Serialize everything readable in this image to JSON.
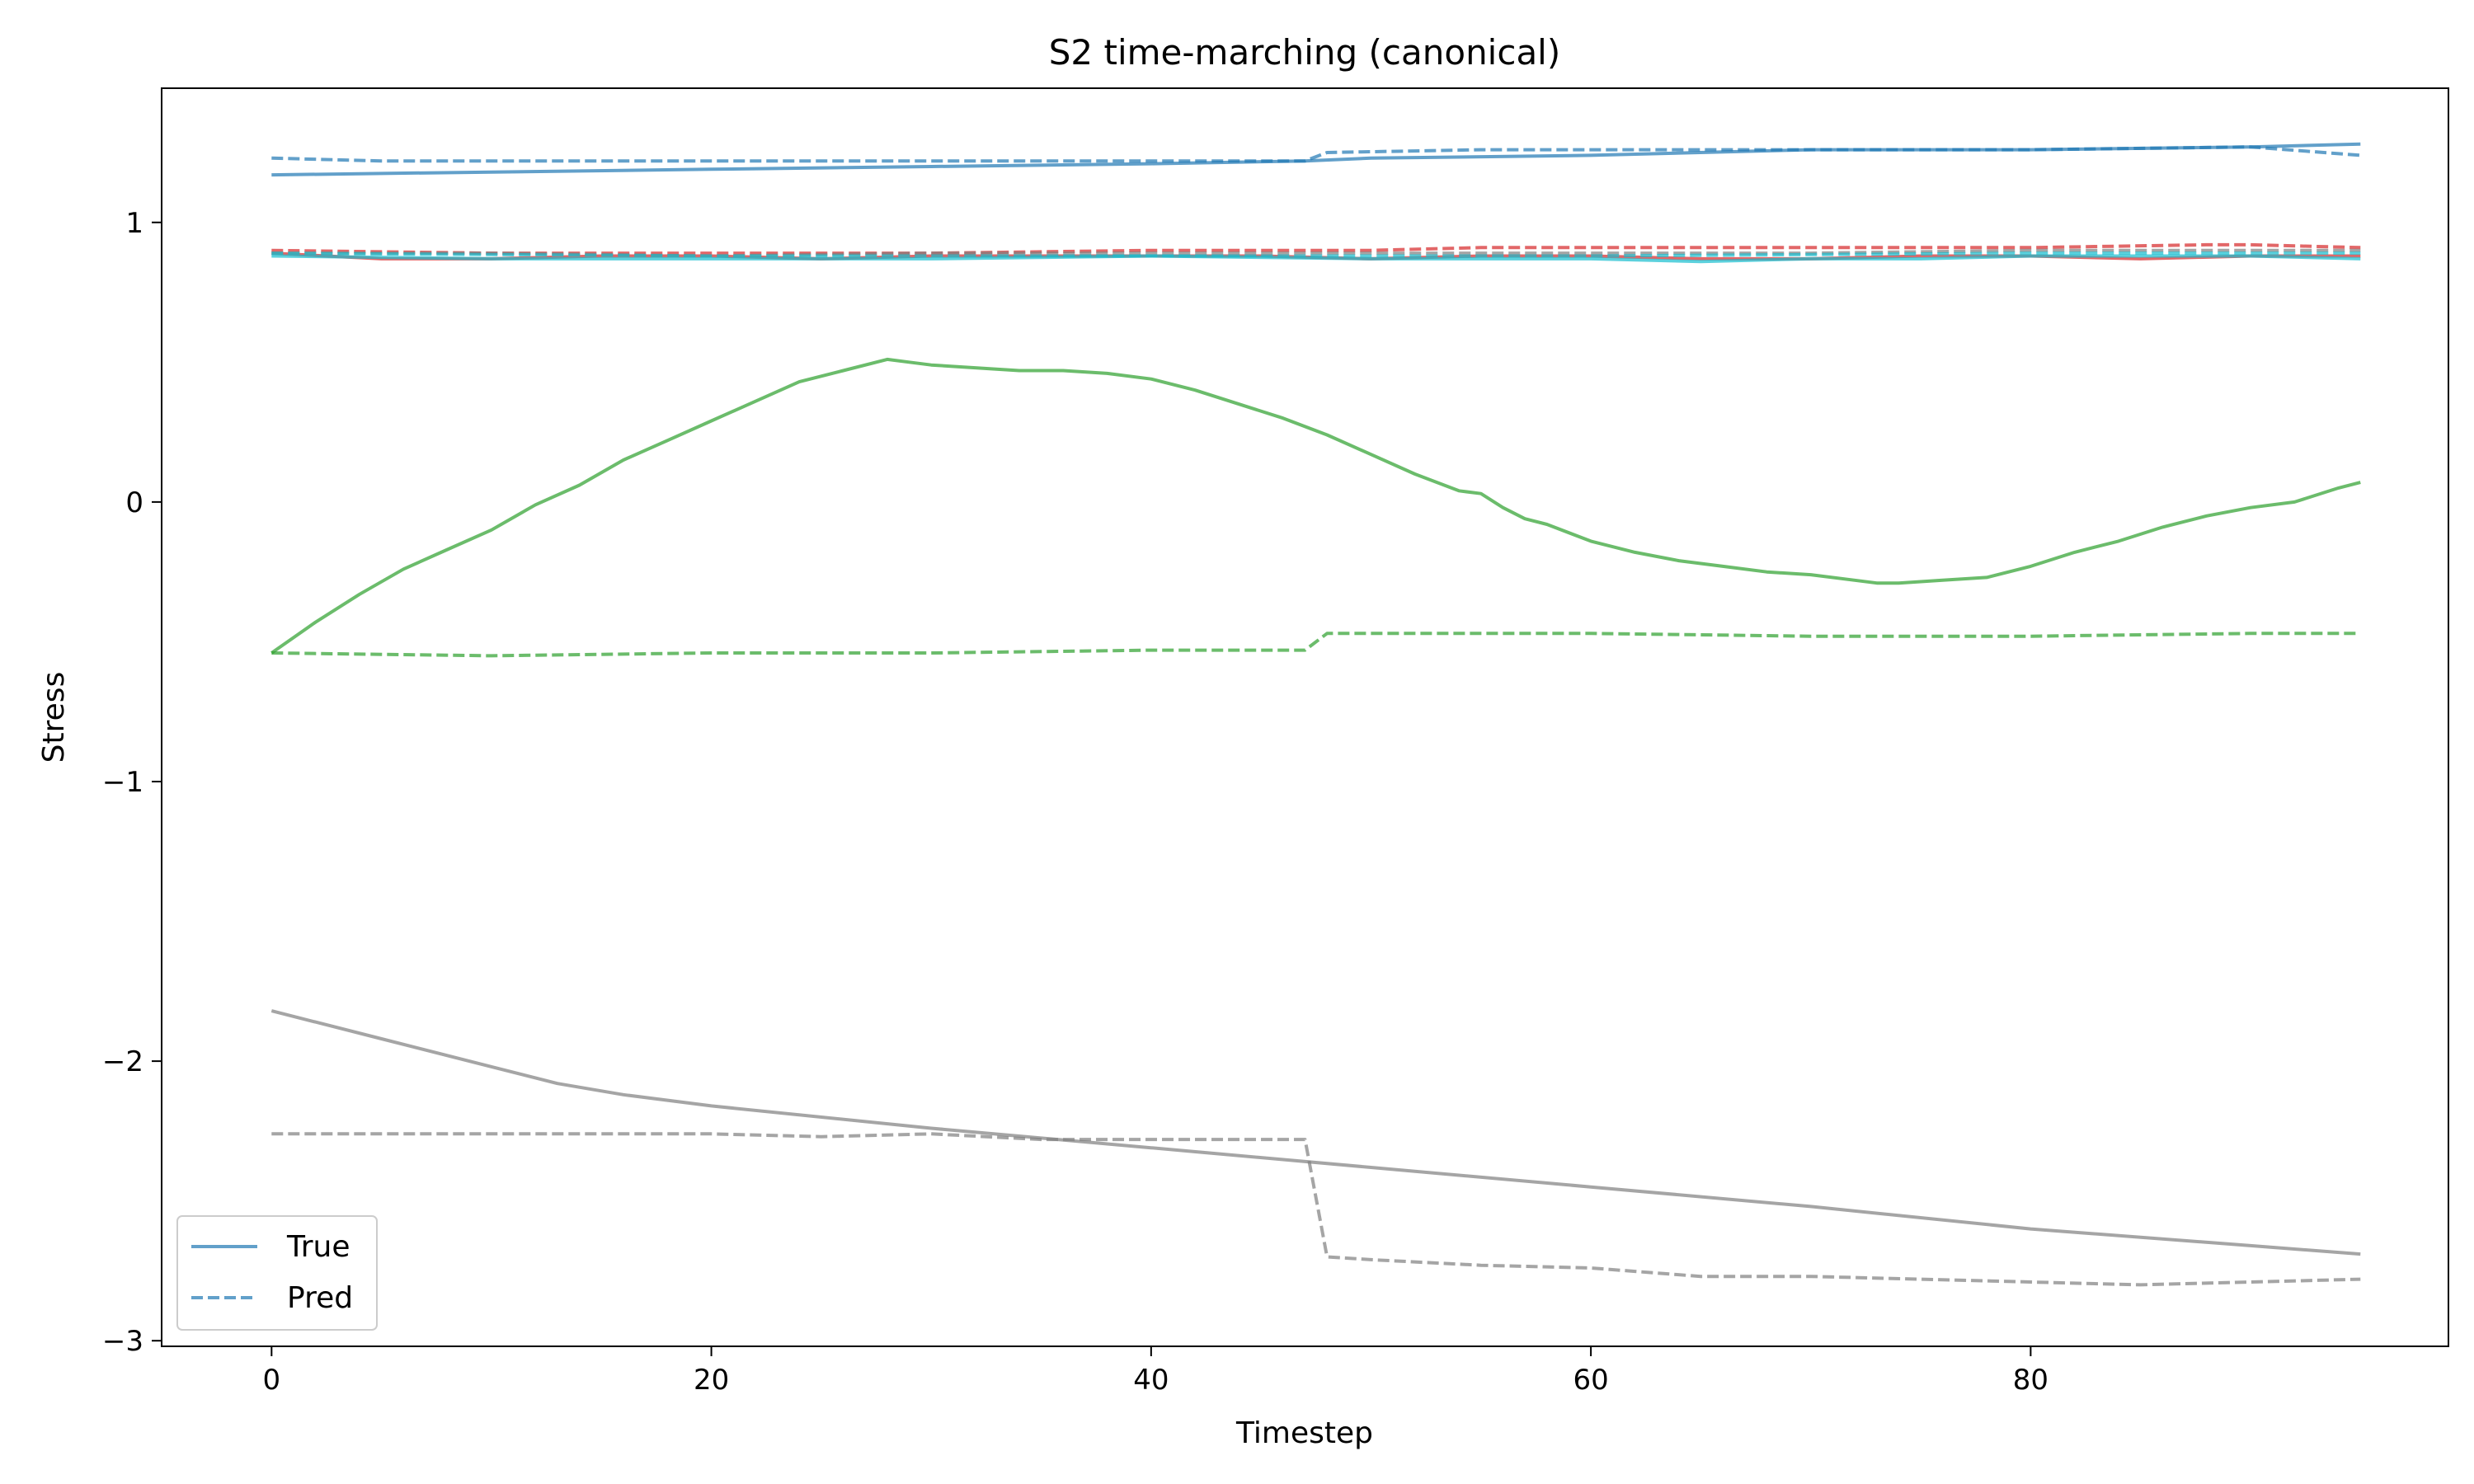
{
  "chart_data": {
    "type": "line",
    "title": "S2 time-marching (canonical)",
    "xlabel": "Timestep",
    "ylabel": "Stress",
    "xlim": [
      -5,
      99
    ],
    "ylim": [
      -3.02,
      1.48
    ],
    "xticks": [
      0,
      20,
      40,
      60,
      80
    ],
    "xtick_labels": [
      "0",
      "20",
      "40",
      "60",
      "80"
    ],
    "yticks": [
      -3,
      -2,
      -1,
      0,
      1
    ],
    "ytick_labels": [
      "−3",
      "−2",
      "−1",
      "0",
      "1"
    ],
    "grid": false,
    "legend": {
      "placement": "lower-left",
      "entries": [
        {
          "label": "True",
          "style": "solid",
          "color": "#1f77b4"
        },
        {
          "label": "Pred",
          "style": "dashed",
          "color": "#1f77b4"
        }
      ]
    },
    "series": [
      {
        "color": "#1f77b4",
        "style": "solid",
        "x": [
          0,
          10,
          20,
          30,
          40,
          47,
          50,
          60,
          70,
          80,
          90,
          95
        ],
        "y": [
          1.17,
          1.18,
          1.19,
          1.2,
          1.21,
          1.22,
          1.23,
          1.24,
          1.26,
          1.26,
          1.27,
          1.28
        ]
      },
      {
        "color": "#1f77b4",
        "style": "dashed",
        "x": [
          0,
          5,
          10,
          20,
          30,
          40,
          47,
          48,
          55,
          60,
          70,
          80,
          90,
          95
        ],
        "y": [
          1.23,
          1.22,
          1.22,
          1.22,
          1.22,
          1.22,
          1.22,
          1.25,
          1.26,
          1.26,
          1.26,
          1.26,
          1.27,
          1.24
        ]
      },
      {
        "color": "#d62728",
        "style": "solid",
        "x": [
          0,
          5,
          10,
          15,
          20,
          25,
          30,
          35,
          40,
          45,
          50,
          55,
          60,
          65,
          70,
          75,
          80,
          85,
          90,
          95
        ],
        "y": [
          0.89,
          0.87,
          0.87,
          0.88,
          0.88,
          0.87,
          0.88,
          0.88,
          0.88,
          0.88,
          0.87,
          0.88,
          0.88,
          0.87,
          0.87,
          0.88,
          0.88,
          0.87,
          0.88,
          0.88
        ]
      },
      {
        "color": "#d62728",
        "style": "dashed",
        "x": [
          0,
          10,
          20,
          30,
          40,
          47,
          50,
          55,
          60,
          70,
          80,
          88,
          90,
          95
        ],
        "y": [
          0.9,
          0.89,
          0.89,
          0.89,
          0.9,
          0.9,
          0.9,
          0.91,
          0.91,
          0.91,
          0.91,
          0.92,
          0.92,
          0.91
        ]
      },
      {
        "color": "#7f7f7f",
        "style": "dashed",
        "x": [
          0,
          10,
          20,
          30,
          40,
          50,
          60,
          70,
          80,
          90,
          95
        ],
        "y": [
          0.89,
          0.89,
          0.88,
          0.89,
          0.89,
          0.89,
          0.89,
          0.89,
          0.9,
          0.9,
          0.9
        ]
      },
      {
        "color": "#17becf",
        "style": "solid",
        "x": [
          0,
          10,
          20,
          30,
          40,
          50,
          55,
          60,
          65,
          70,
          75,
          80,
          90,
          95
        ],
        "y": [
          0.88,
          0.87,
          0.87,
          0.87,
          0.88,
          0.87,
          0.87,
          0.87,
          0.86,
          0.87,
          0.87,
          0.88,
          0.88,
          0.87
        ]
      },
      {
        "color": "#17becf",
        "style": "dashed",
        "x": [
          0,
          20,
          40,
          60,
          80,
          95
        ],
        "y": [
          0.89,
          0.88,
          0.88,
          0.88,
          0.89,
          0.89
        ]
      },
      {
        "color": "#2ca02c",
        "style": "solid",
        "x": [
          0,
          2,
          4,
          6,
          8,
          10,
          12,
          14,
          16,
          18,
          20,
          22,
          24,
          26,
          28,
          29,
          30,
          32,
          34,
          36,
          38,
          40,
          42,
          44,
          46,
          48,
          50,
          52,
          54,
          55,
          56,
          57,
          58,
          60,
          62,
          64,
          66,
          68,
          70,
          72,
          73,
          74,
          76,
          78,
          80,
          82,
          84,
          86,
          88,
          90,
          92,
          94,
          95
        ],
        "y": [
          -0.54,
          -0.43,
          -0.33,
          -0.24,
          -0.17,
          -0.1,
          -0.01,
          0.06,
          0.15,
          0.22,
          0.29,
          0.36,
          0.43,
          0.47,
          0.51,
          0.5,
          0.49,
          0.48,
          0.47,
          0.47,
          0.46,
          0.44,
          0.4,
          0.35,
          0.3,
          0.24,
          0.17,
          0.1,
          0.04,
          0.03,
          -0.02,
          -0.06,
          -0.08,
          -0.14,
          -0.18,
          -0.21,
          -0.23,
          -0.25,
          -0.26,
          -0.28,
          -0.29,
          -0.29,
          -0.28,
          -0.27,
          -0.23,
          -0.18,
          -0.14,
          -0.09,
          -0.05,
          -0.02,
          0.0,
          0.05,
          0.07
        ]
      },
      {
        "color": "#2ca02c",
        "style": "dashed",
        "x": [
          0,
          10,
          20,
          30,
          40,
          47,
          48,
          55,
          60,
          70,
          80,
          90,
          95
        ],
        "y": [
          -0.54,
          -0.55,
          -0.54,
          -0.54,
          -0.53,
          -0.53,
          -0.47,
          -0.47,
          -0.47,
          -0.48,
          -0.48,
          -0.47,
          -0.47
        ]
      },
      {
        "color": "#7f7f7f",
        "style": "solid",
        "x": [
          0,
          5,
          10,
          13,
          16,
          20,
          30,
          40,
          50,
          60,
          70,
          80,
          90,
          95
        ],
        "y": [
          -1.82,
          -1.92,
          -2.02,
          -2.08,
          -2.12,
          -2.16,
          -2.24,
          -2.31,
          -2.38,
          -2.45,
          -2.52,
          -2.6,
          -2.66,
          -2.69
        ]
      },
      {
        "color": "#7f7f7f",
        "style": "dashed",
        "x": [
          0,
          5,
          10,
          15,
          20,
          25,
          30,
          35,
          40,
          45,
          47,
          48,
          50,
          55,
          60,
          65,
          70,
          75,
          80,
          85,
          90,
          95
        ],
        "y": [
          -2.26,
          -2.26,
          -2.26,
          -2.26,
          -2.26,
          -2.27,
          -2.26,
          -2.28,
          -2.28,
          -2.28,
          -2.28,
          -2.7,
          -2.71,
          -2.73,
          -2.74,
          -2.77,
          -2.77,
          -2.78,
          -2.79,
          -2.8,
          -2.79,
          -2.78
        ]
      }
    ]
  }
}
